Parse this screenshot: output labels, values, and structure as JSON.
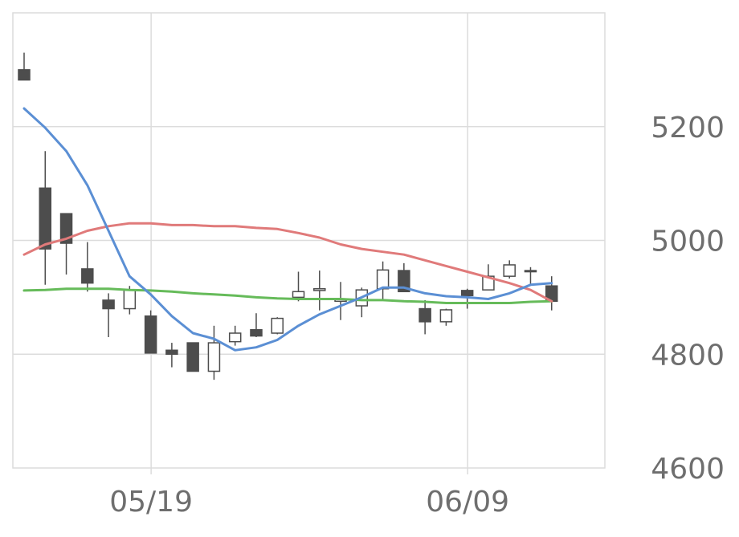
{
  "chart_data": {
    "type": "candlestick",
    "title": "",
    "xlabel": "",
    "ylabel": "",
    "ylim": [
      4600,
      5400
    ],
    "y_ticks": [
      "4600",
      "4800",
      "5000",
      "5200"
    ],
    "x_ticks": [
      {
        "label": "05/19",
        "index": 6
      },
      {
        "label": "06/09",
        "index": 21
      }
    ],
    "grid": true,
    "legend": "none",
    "colors": {
      "down_body": "#4d4d4d",
      "up_body": "#ffffff",
      "wick": "#4d4d4d",
      "ma_short": "#5b8fd4",
      "ma_mid": "#e07a7a",
      "ma_long": "#66bb5a",
      "grid": "#dcdcdc",
      "tick_text": "#6e6e6e"
    },
    "candles": [
      {
        "o": 5300,
        "h": 5330,
        "l": 5282,
        "c": 5282
      },
      {
        "o": 5092,
        "h": 5157,
        "l": 4922,
        "c": 4985
      },
      {
        "o": 5047,
        "h": 5047,
        "l": 4940,
        "c": 4995
      },
      {
        "o": 4950,
        "h": 4997,
        "l": 4910,
        "c": 4925
      },
      {
        "o": 4895,
        "h": 4907,
        "l": 4830,
        "c": 4880
      },
      {
        "o": 4880,
        "h": 4920,
        "l": 4870,
        "c": 4913
      },
      {
        "o": 4867,
        "h": 4877,
        "l": 4802,
        "c": 4802
      },
      {
        "o": 4807,
        "h": 4820,
        "l": 4777,
        "c": 4800
      },
      {
        "o": 4820,
        "h": 4820,
        "l": 4770,
        "c": 4770
      },
      {
        "o": 4770,
        "h": 4850,
        "l": 4755,
        "c": 4820
      },
      {
        "o": 4822,
        "h": 4850,
        "l": 4815,
        "c": 4837
      },
      {
        "o": 4843,
        "h": 4872,
        "l": 4830,
        "c": 4832
      },
      {
        "o": 4837,
        "h": 4865,
        "l": 4835,
        "c": 4863
      },
      {
        "o": 4900,
        "h": 4945,
        "l": 4893,
        "c": 4910
      },
      {
        "o": 4912,
        "h": 4947,
        "l": 4877,
        "c": 4915
      },
      {
        "o": 4893,
        "h": 4927,
        "l": 4860,
        "c": 4897
      },
      {
        "o": 4885,
        "h": 4917,
        "l": 4865,
        "c": 4913
      },
      {
        "o": 4915,
        "h": 4963,
        "l": 4895,
        "c": 4948
      },
      {
        "o": 4947,
        "h": 4960,
        "l": 4910,
        "c": 4910
      },
      {
        "o": 4880,
        "h": 4895,
        "l": 4835,
        "c": 4857
      },
      {
        "o": 4857,
        "h": 4880,
        "l": 4850,
        "c": 4878
      },
      {
        "o": 4912,
        "h": 4915,
        "l": 4880,
        "c": 4903
      },
      {
        "o": 4913,
        "h": 4958,
        "l": 4913,
        "c": 4937
      },
      {
        "o": 4937,
        "h": 4965,
        "l": 4933,
        "c": 4957
      },
      {
        "o": 4947,
        "h": 4953,
        "l": 4922,
        "c": 4947
      },
      {
        "o": 4920,
        "h": 4937,
        "l": 4877,
        "c": 4893
      }
    ],
    "ma_short": [
      5232,
      5198,
      5157,
      5097,
      5017,
      4937,
      4905,
      4867,
      4837,
      4827,
      4807,
      4812,
      4825,
      4850,
      4870,
      4885,
      4900,
      4917,
      4917,
      4907,
      4902,
      4900,
      4897,
      4907,
      4922,
      4925
    ],
    "ma_mid": [
      4975,
      4993,
      5003,
      5017,
      5025,
      5030,
      5030,
      5027,
      5027,
      5025,
      5025,
      5022,
      5020,
      5013,
      5005,
      4993,
      4985,
      4980,
      4975,
      4965,
      4955,
      4945,
      4935,
      4925,
      4913,
      4893
    ],
    "ma_long": [
      4912,
      4913,
      4915,
      4915,
      4915,
      4913,
      4912,
      4910,
      4907,
      4905,
      4903,
      4900,
      4898,
      4897,
      4897,
      4897,
      4895,
      4895,
      4893,
      4892,
      4890,
      4890,
      4890,
      4890,
      4892,
      4893
    ]
  }
}
